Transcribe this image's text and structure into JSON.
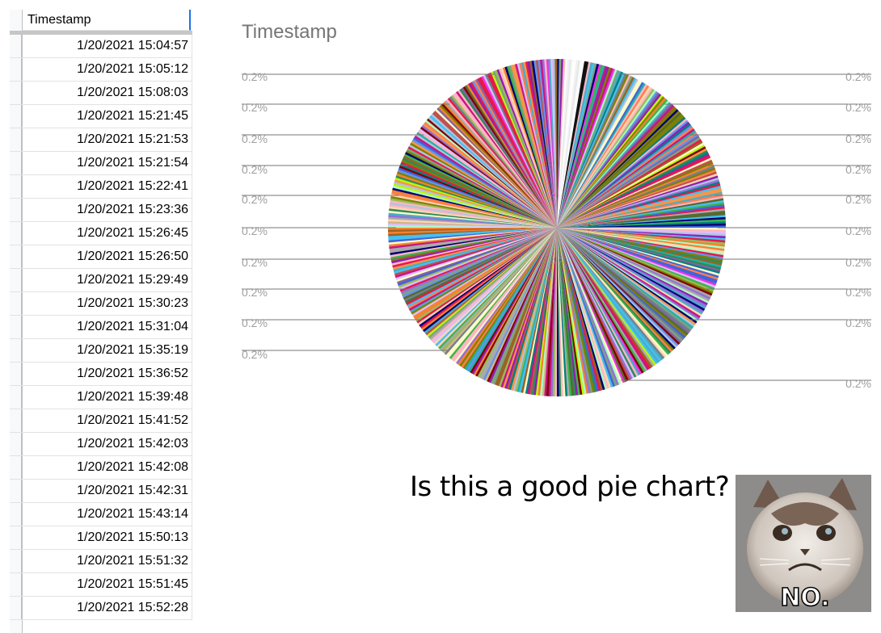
{
  "sheet": {
    "header": "Timestamp",
    "rows": [
      "1/20/2021 15:04:57",
      "1/20/2021 15:05:12",
      "1/20/2021 15:08:03",
      "1/20/2021 15:21:45",
      "1/20/2021 15:21:53",
      "1/20/2021 15:21:54",
      "1/20/2021 15:22:41",
      "1/20/2021 15:23:36",
      "1/20/2021 15:26:45",
      "1/20/2021 15:26:50",
      "1/20/2021 15:29:49",
      "1/20/2021 15:30:23",
      "1/20/2021 15:31:04",
      "1/20/2021 15:35:19",
      "1/20/2021 15:36:52",
      "1/20/2021 15:39:48",
      "1/20/2021 15:41:52",
      "1/20/2021 15:42:03",
      "1/20/2021 15:42:08",
      "1/20/2021 15:42:31",
      "1/20/2021 15:43:14",
      "1/20/2021 15:50:13",
      "1/20/2021 15:51:32",
      "1/20/2021 15:51:45",
      "1/20/2021 15:52:28"
    ]
  },
  "chart_data": {
    "type": "pie",
    "title": "Timestamp",
    "slice_count": 500,
    "slice_value_percent": 0.2,
    "visible_labels_left": [
      "0.2%",
      "0.2%",
      "0.2%",
      "0.2%",
      "0.2%",
      "0.2%",
      "0.2%",
      "0.2%",
      "0.2%",
      "0.2%"
    ],
    "visible_labels_right": [
      "0.2%",
      "0.2%",
      "0.2%",
      "0.2%",
      "0.2%",
      "0.2%",
      "0.2%",
      "0.2%",
      "0.2%",
      "0.2%"
    ],
    "legend": "none"
  },
  "caption": "Is this a good pie chart?",
  "meme": {
    "text": "NO.",
    "icon": "grumpy-cat-image"
  }
}
